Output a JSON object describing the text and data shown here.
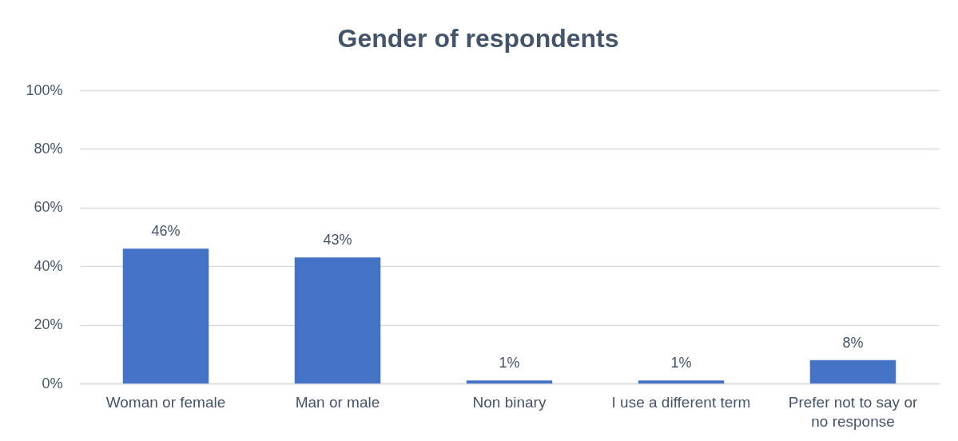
{
  "chart_data": {
    "type": "bar",
    "title": "Gender of respondents",
    "categories": [
      "Woman or female",
      "Man or male",
      "Non binary",
      "I use a different term",
      "Prefer not to say  or no response"
    ],
    "values": [
      46,
      43,
      1,
      1,
      8
    ],
    "color": "#4472c4",
    "value_labels": [
      "46%",
      "43%",
      "1%",
      "1%",
      "8%"
    ],
    "ylim": [
      0,
      100
    ],
    "yticks": [
      {
        "value": 0,
        "label": "0%"
      },
      {
        "value": 20,
        "label": "20%"
      },
      {
        "value": 40,
        "label": "40%"
      },
      {
        "value": 60,
        "label": "60%"
      },
      {
        "value": 80,
        "label": "80%"
      },
      {
        "value": 100,
        "label": "100%"
      }
    ],
    "grid": "y"
  }
}
